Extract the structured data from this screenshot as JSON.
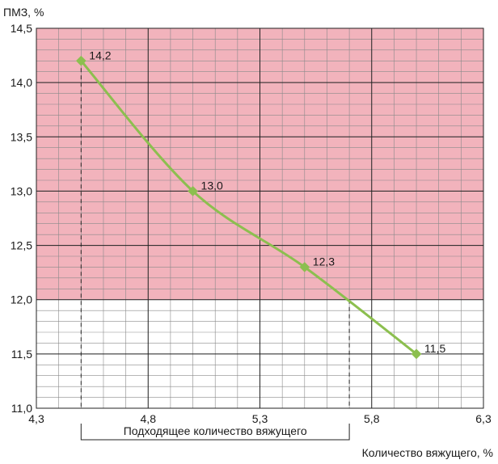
{
  "chart_data": {
    "type": "line",
    "title": "",
    "xlabel": "Количество вяжущего, %",
    "ylabel": "ПМЗ, %",
    "xlim": [
      4.3,
      6.3
    ],
    "ylim": [
      11.0,
      14.5
    ],
    "x_ticks": [
      "4,3",
      "4,8",
      "5,3",
      "5,8",
      "6,3"
    ],
    "y_ticks": [
      "11,0",
      "11,5",
      "12,0",
      "12,5",
      "13,0",
      "13,5",
      "14,0",
      "14,5"
    ],
    "x_tick_values": [
      4.3,
      4.8,
      5.3,
      5.8,
      6.3
    ],
    "y_tick_values": [
      11.0,
      11.5,
      12.0,
      12.5,
      13.0,
      13.5,
      14.0,
      14.5
    ],
    "grid": true,
    "shaded_region": {
      "from_y": 12.0,
      "to_y": 14.5,
      "color": "#f2b3bc"
    },
    "series": [
      {
        "name": "ПМЗ",
        "color": "#8cbf4f",
        "x": [
          4.5,
          5.0,
          5.5,
          6.0
        ],
        "y": [
          14.2,
          13.0,
          12.3,
          11.5
        ],
        "labels": [
          "14,2",
          "13,0",
          "12,3",
          "11,5"
        ]
      }
    ],
    "range_annotation": {
      "label": "Подходящее количество вяжущего",
      "from_x": 4.5,
      "to_x": 5.7
    }
  }
}
